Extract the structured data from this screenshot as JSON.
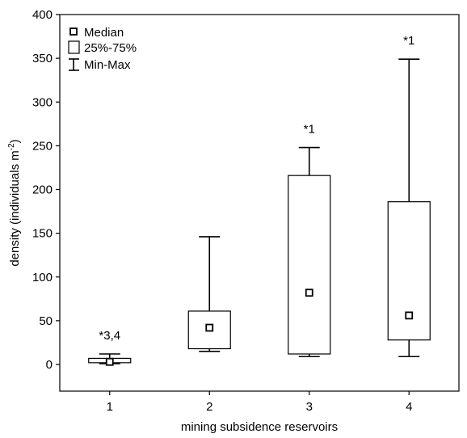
{
  "chart_data": {
    "type": "box",
    "xlabel": "mining subsidence reservoirs",
    "ylabel": "density (individuals m",
    "ylabel_sup": "-2",
    "ylabel_close": ")",
    "ylim": [
      -30,
      400
    ],
    "yticks": [
      0,
      50,
      100,
      150,
      200,
      250,
      300,
      350,
      400
    ],
    "categories": [
      "1",
      "2",
      "3",
      "4"
    ],
    "boxes": [
      {
        "category": "1",
        "min": 1,
        "q1": 2,
        "median": 3,
        "q3": 7,
        "max": 12,
        "annotation": "*3,4"
      },
      {
        "category": "2",
        "min": 15,
        "q1": 18,
        "median": 42,
        "q3": 61,
        "max": 146,
        "annotation": ""
      },
      {
        "category": "3",
        "min": 9,
        "q1": 12,
        "median": 82,
        "q3": 216,
        "max": 248,
        "annotation": "*1"
      },
      {
        "category": "4",
        "min": 9,
        "q1": 28,
        "median": 56,
        "q3": 186,
        "max": 349,
        "annotation": "*1"
      }
    ],
    "legend": {
      "position": "top-left",
      "items": [
        {
          "symbol": "median-square",
          "label": "Median"
        },
        {
          "symbol": "box",
          "label": "25%-75%"
        },
        {
          "symbol": "whisker",
          "label": "Min-Max"
        }
      ]
    },
    "grid": false
  }
}
